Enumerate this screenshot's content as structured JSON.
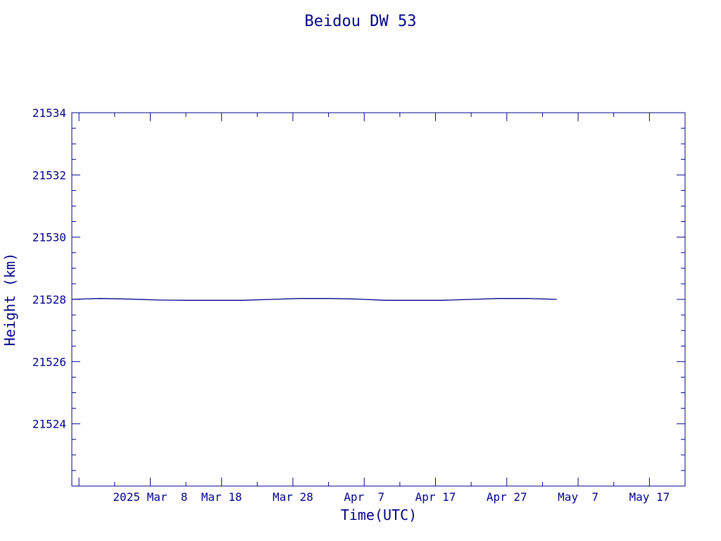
{
  "chart_data": {
    "type": "line",
    "title": "Beidou DW 53",
    "xlabel": "Time(UTC)",
    "ylabel": "Height (km)",
    "x_tick_labels": [
      "2025 Mar  8",
      "Mar 18",
      "Mar 28",
      "Apr  7",
      "Apr 17",
      "Apr 27",
      "May  7",
      "May 17"
    ],
    "x_tick_dates": [
      "2025-03-08",
      "2025-03-18",
      "2025-03-28",
      "2025-04-07",
      "2025-04-17",
      "2025-04-27",
      "2025-05-07",
      "2025-05-17"
    ],
    "x_range": [
      "2025-02-25",
      "2025-05-22"
    ],
    "y_ticks": [
      21524,
      21526,
      21528,
      21530,
      21532,
      21534
    ],
    "y_tick_labels": [
      "21524",
      "21526",
      "21528",
      "21530",
      "21532",
      "21534"
    ],
    "ylim": [
      21522,
      21534
    ],
    "grid": false,
    "series": [
      {
        "x": [
          "2025-02-25",
          "2025-03-01",
          "2025-03-05",
          "2025-03-09",
          "2025-03-13",
          "2025-03-17",
          "2025-03-21",
          "2025-03-25",
          "2025-03-29",
          "2025-04-02",
          "2025-04-06",
          "2025-04-10",
          "2025-04-14",
          "2025-04-18",
          "2025-04-22",
          "2025-04-26",
          "2025-04-30",
          "2025-05-04"
        ],
        "values": [
          21528.0,
          21528.03,
          21528.01,
          21527.98,
          21527.97,
          21527.97,
          21527.97,
          21528.0,
          21528.03,
          21528.03,
          21528.01,
          21527.97,
          21527.97,
          21527.97,
          21528.0,
          21528.03,
          21528.03,
          21528.0
        ]
      }
    ]
  }
}
